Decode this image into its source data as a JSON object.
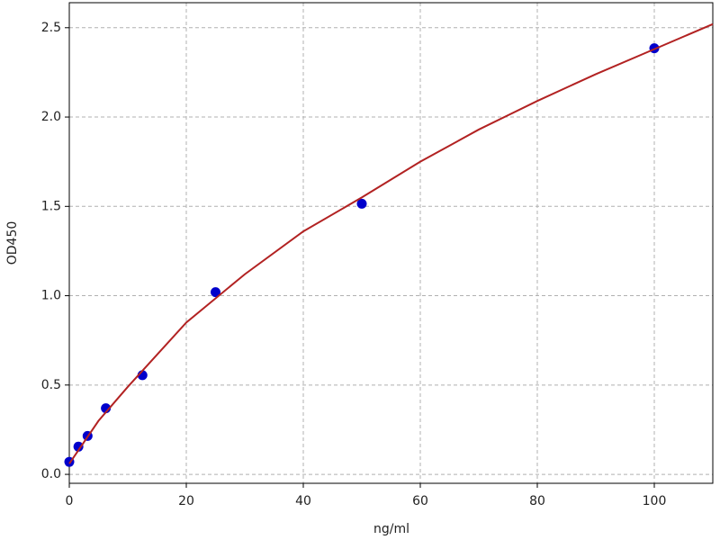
{
  "chart_data": {
    "type": "scatter",
    "xlabel": "ng/ml",
    "ylabel": "OD450",
    "xlim": [
      0,
      110
    ],
    "ylim": [
      -0.05,
      2.64
    ],
    "xticks": [
      0,
      20,
      40,
      60,
      80,
      100
    ],
    "yticks": [
      {
        "value": 0,
        "label": "0.0"
      },
      0.5,
      {
        "value": 1,
        "label": "1.0"
      },
      1.5,
      {
        "value": 2,
        "label": "2.0"
      },
      2.5
    ],
    "grid": true,
    "series": [
      {
        "type": "scatter",
        "color": "#0000cc",
        "x": [
          0,
          1.56,
          3.125,
          6.25,
          12.5,
          25,
          50,
          100
        ],
        "values": [
          0.07,
          0.155,
          0.215,
          0.37,
          0.555,
          1.02,
          1.515,
          2.385
        ]
      },
      {
        "type": "line",
        "color": "#b22222",
        "x": [
          0,
          5,
          10,
          20,
          30,
          40,
          50,
          60,
          70,
          80,
          90,
          100,
          110
        ],
        "values": [
          0.06,
          0.3,
          0.49,
          0.85,
          1.12,
          1.36,
          1.55,
          1.75,
          1.93,
          2.09,
          2.24,
          2.38,
          2.52
        ]
      }
    ]
  }
}
